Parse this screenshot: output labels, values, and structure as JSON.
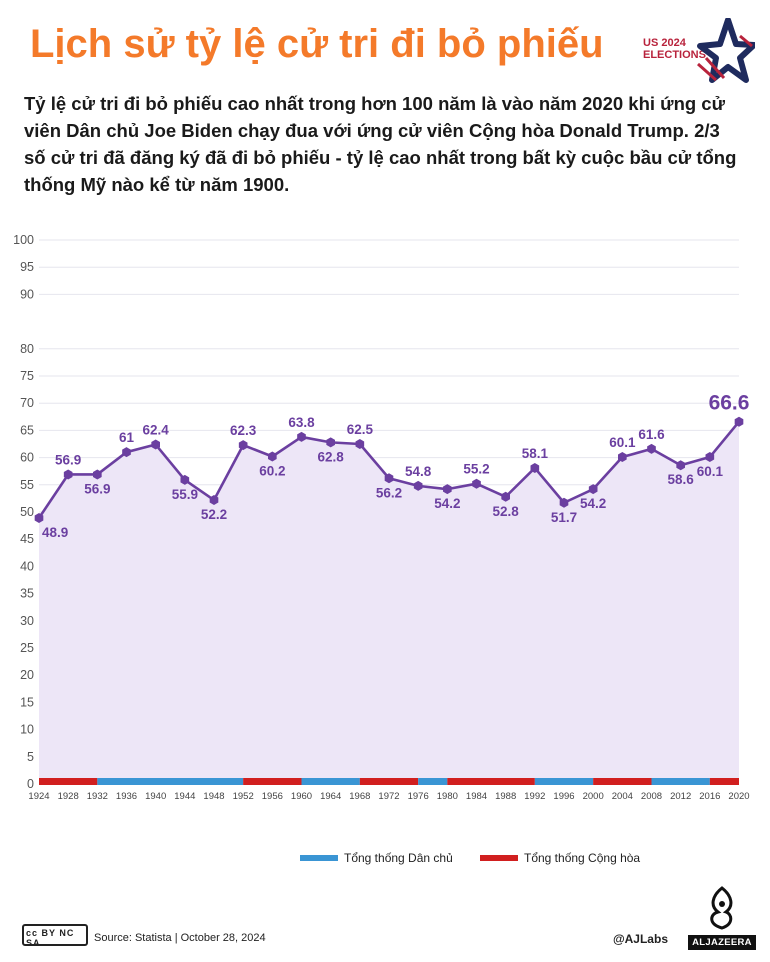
{
  "title": "Lịch sử tỷ lệ cử tri đi bỏ phiếu",
  "subtitle": "Tỷ lệ cử tri đi bỏ phiếu cao nhất trong hơn 100 năm là vào năm 2020 khi ứng cử viên Dân chủ Joe Biden chạy đua với ứng cử viên Cộng hòa Donald Trump. 2/3 số cử tri đã đăng ký đã đi bỏ phiếu - tỷ lệ cao nhất trong bất kỳ cuộc bầu cử tổng thống Mỹ nào kể từ năm 1900.",
  "logo": {
    "line1": "US 2024",
    "line2": "ELECTIONS"
  },
  "chart_data": {
    "type": "line",
    "x": [
      "1924",
      "1928",
      "1932",
      "1936",
      "1940",
      "1944",
      "1948",
      "1952",
      "1956",
      "1960",
      "1964",
      "1968",
      "1972",
      "1976",
      "1980",
      "1984",
      "1988",
      "1992",
      "1996",
      "2000",
      "2004",
      "2008",
      "2012",
      "2016",
      "2020"
    ],
    "values": [
      48.9,
      56.9,
      56.9,
      61,
      62.4,
      55.9,
      52.2,
      62.3,
      60.2,
      63.8,
      62.8,
      62.5,
      56.2,
      54.8,
      54.2,
      55.2,
      52.8,
      58.1,
      51.7,
      54.2,
      60.1,
      61.6,
      58.6,
      60.1,
      66.6
    ],
    "labels": [
      "48.9",
      "56.9",
      "56.9",
      "61",
      "62.4",
      "55.9",
      "52.2",
      "62.3",
      "60.2",
      "63.8",
      "62.8",
      "62.5",
      "56.2",
      "54.8",
      "54.2",
      "55.2",
      "52.8",
      "58.1",
      "51.7",
      "54.2",
      "60.1",
      "61.6",
      "58.6",
      "60.1",
      "66.6"
    ],
    "label_pos": [
      "below",
      "above",
      "below",
      "above",
      "above",
      "below",
      "below",
      "above",
      "below",
      "above",
      "below",
      "above",
      "below",
      "above",
      "below",
      "above",
      "below",
      "above",
      "below",
      "below",
      "above",
      "above",
      "below",
      "below",
      "above"
    ],
    "yticks": [
      "0",
      "5",
      "10",
      "15",
      "20",
      "25",
      "30",
      "35",
      "40",
      "45",
      "50",
      "55",
      "60",
      "65",
      "70",
      "75",
      "80",
      "90",
      "95",
      "100"
    ],
    "ytick_values": [
      0,
      5,
      10,
      15,
      20,
      25,
      30,
      35,
      40,
      45,
      50,
      55,
      60,
      65,
      70,
      75,
      80,
      90,
      95,
      100
    ],
    "ylim": [
      0,
      100
    ],
    "grid": true,
    "line_color": "#6b3fa0",
    "fill_color": "#ede6f7",
    "party_bar": [
      {
        "from": "1924",
        "to": "1932",
        "party": "rep"
      },
      {
        "from": "1932",
        "to": "1952",
        "party": "dem"
      },
      {
        "from": "1952",
        "to": "1960",
        "party": "rep"
      },
      {
        "from": "1960",
        "to": "1968",
        "party": "dem"
      },
      {
        "from": "1968",
        "to": "1976",
        "party": "rep"
      },
      {
        "from": "1976",
        "to": "1980",
        "party": "dem"
      },
      {
        "from": "1980",
        "to": "1992",
        "party": "rep"
      },
      {
        "from": "1992",
        "to": "2000",
        "party": "dem"
      },
      {
        "from": "2000",
        "to": "2008",
        "party": "rep"
      },
      {
        "from": "2008",
        "to": "2016",
        "party": "dem"
      },
      {
        "from": "2016",
        "to": "2020",
        "party": "rep"
      }
    ],
    "party_colors": {
      "dem": "#3a95d4",
      "rep": "#d11f1f"
    }
  },
  "legend": [
    {
      "label": "Tổng thống Dân chủ",
      "color": "#3a95d4"
    },
    {
      "label": "Tổng thống Cộng hòa",
      "color": "#d11f1f"
    }
  ],
  "footer": {
    "license": "cc BY NC SA",
    "source": "Source:  Statista  |  October 28, 2024",
    "handle": "@AJLabs",
    "brand": "ALJAZEERA"
  }
}
